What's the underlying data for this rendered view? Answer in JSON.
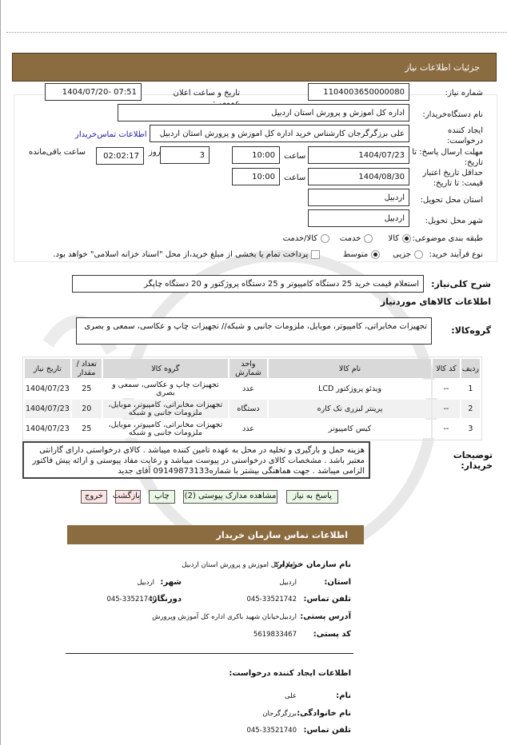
{
  "header": {
    "title": "جزئیات اطلاعات نیاز"
  },
  "form": {
    "need_number_label": "شماره نیاز:",
    "need_number": "1104003650000080",
    "announce_label": "تاریخ و ساعت اعلان عمومی:",
    "announce_value": "1404/07/20- 07:51",
    "buyer_label": "نام دستگاه‌خریدار:",
    "buyer": "اداره کل اموزش و پرورش استان اردبیل",
    "creator_label": "ایجاد کننده درخواست:",
    "creator": "علی برزگرگرجان کارشناس خرید اداره کل اموزش و پرورش استان اردبیل",
    "contact_link": "اطلاعات تماس‌خریدار",
    "deadline_label": "مهلت ارسال پاسخ: تا تاریخ:",
    "deadline_date": "1404/07/23",
    "time_label": "ساعت",
    "deadline_time": "10:00",
    "days": "3",
    "day_label": "روز",
    "remaining": "02:02:17",
    "remaining_label": "ساعت باقی‌مانده",
    "validity_label": "حداقل تاریخ اعتبار قیمت: تا تاریخ:",
    "validity_date": "1404/08/30",
    "validity_time": "10:00",
    "province_label": "استان محل تحویل:",
    "province": "اردبیل",
    "city_label": "شهر محل تحویل:",
    "city": "اردبیل",
    "category_label": "طبقه بندی موضوعی:",
    "category_options": [
      "کالا",
      "خدمت",
      "کالا/خدمت"
    ],
    "category_selected": "کالا",
    "process_label": "نوع فرآیند خرید:",
    "process_options": [
      "جزیی",
      "متوسط"
    ],
    "process_selected": "متوسط",
    "payment_note": "پرداخت تمام یا بخشی از مبلغ خرید،از محل \"اسناد خزانه اسلامی\" خواهد بود."
  },
  "summary": {
    "label": "شرح کلی‌نیاز:",
    "value": "استعلام قیمت خرید 25 دستگاه کامپیوتر و 25 دستگاه پروژکتور و 20 دستگاه چاپگر"
  },
  "goods": {
    "heading": "اطلاعات کالاهای موردنیاز",
    "group_label": "گروه‌کالا:",
    "group_value": "تجهیزات مخابراتی، کامپیوتر، موبایل، ملزومات جانبی و شبکه// تجهیزات چاپ و عکاسی، سمعی و بصری",
    "columns": [
      "ردیف",
      "کد کالا",
      "نام کالا",
      "واحد شمارش",
      "گروه کالا",
      "تعداد / مقدار",
      "تاریخ نیاز"
    ],
    "rows": [
      [
        "1",
        "--",
        "ویدئو پروژکتور LCD",
        "عدد",
        "تجهیزات چاپ و عکاسی، سمعی و بصری",
        "25",
        "1404/07/23"
      ],
      [
        "2",
        "--",
        "پرینتر لیزری تک کاره",
        "دستگاه",
        "تجهیزات مخابراتی، کامپیوتر، موبایل، ملزومات جانبی و شبکه",
        "20",
        "1404/07/23"
      ],
      [
        "3",
        "--",
        "کیس کامپیوتر",
        "عدد",
        "تجهیزات مخابراتی، کامپیوتر، موبایل، ملزومات جانبی و شبکه",
        "25",
        "1404/07/23"
      ]
    ]
  },
  "description": {
    "label": "توضیحات خریدار:",
    "value": "هزینه حمل و بارگیری و تخلیه در محل به عهده تامین کننده میباشد . کالای درخواستی دارای گارانتی معتبر باشد . مشخصات کالای درخواستی در پیوست میباشد و رعایت مفاد پیوستی و ارائه پیش فاکتور الزامی میباشد . جهت هماهنگی بیشتر با شماره09149873133 آقای جدید"
  },
  "buttons": {
    "reply": "پاسخ به نیاز",
    "attachments": "مشاهده مدارک پیوستی (2)",
    "print": "چاپ",
    "back": "بازگشت",
    "exit": "خروج"
  },
  "contact": {
    "title": "اطلاعات تماس سازمان خریدار",
    "org_label": "نام سازمان خریدار:",
    "org": "اداره کل اموزش و پرورش استان اردبیل",
    "province_label": "استان:",
    "province": "اردبیل",
    "city_label": "شهر:",
    "city": "اردبیل",
    "phone_label": "تلفن تماس:",
    "phone": "045-33521742",
    "fax_label": "دورنگار:",
    "fax": "045-33521740",
    "address_label": "آدرس پستی:",
    "address": "اردبیل‌خیابان شهید باکری اداره کل آموزش وپرورش",
    "postal_label": "کد پستی:",
    "postal": "5619833467",
    "creator_heading": "اطلاعات ایجاد کننده درخواست:",
    "name_label": "نام:",
    "name": "علی",
    "family_label": "نام خانوادگی:",
    "family": "برزگرگرجان",
    "creator_phone_label": "تلفن تماس:",
    "creator_phone": "045-33521740"
  },
  "colors": {
    "header": "#8b6b40",
    "link": "#1a1aa6"
  }
}
